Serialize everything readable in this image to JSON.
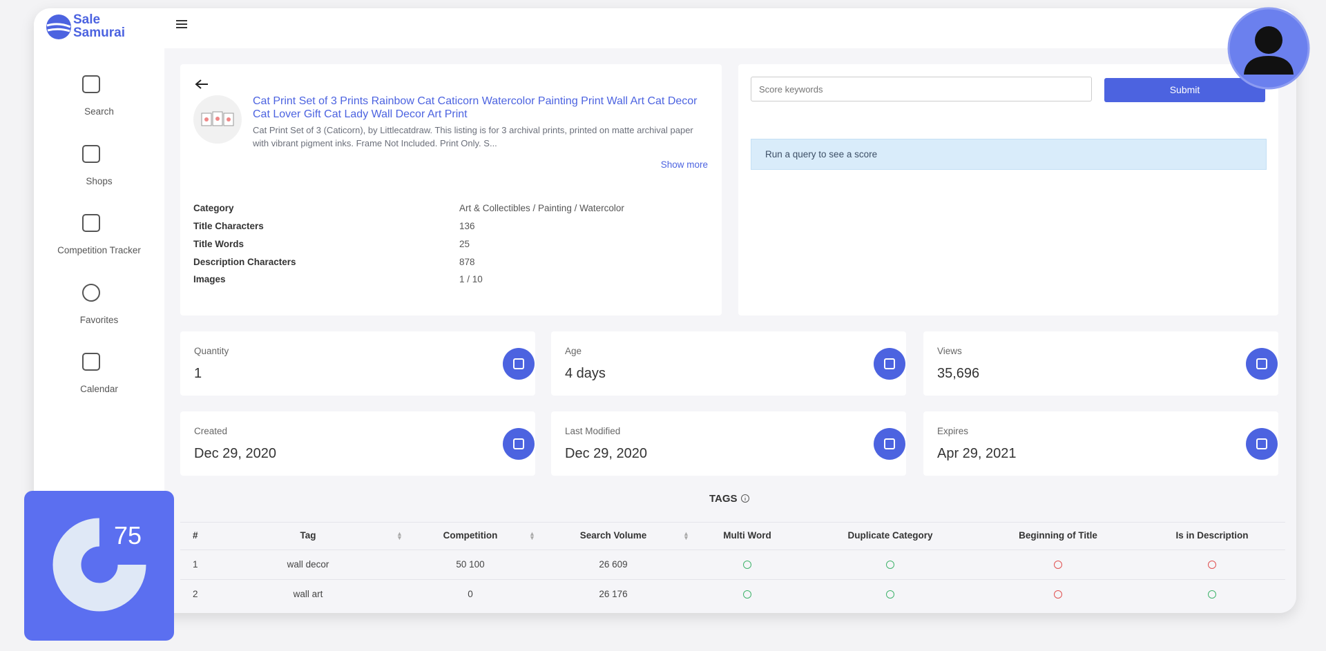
{
  "header": {
    "logo_line1": "Sale",
    "logo_line2": "Samurai"
  },
  "sidebar": [
    "Search",
    "Shops",
    "Competition Tracker",
    "Favorites",
    "Calendar"
  ],
  "listing": {
    "title": "Cat Print Set of 3 Prints Rainbow Cat Caticorn Watercolor Painting Print Wall Art Cat Decor Cat Lover Gift Cat Lady Wall Decor Art Print",
    "description": "Cat Print Set of 3 (Caticorn), by Littlecatdraw. This listing is for 3 archival prints, printed on matte archival paper with vibrant pigment inks. Frame Not Included. Print Only. S...",
    "show_more": "Show more",
    "details": [
      [
        "Category",
        "Art & Collectibles / Painting / Watercolor"
      ],
      [
        "Title Characters",
        "136"
      ],
      [
        "Title Words",
        "25"
      ],
      [
        "Description Characters",
        "878"
      ],
      [
        "Images",
        "1 / 10"
      ]
    ]
  },
  "score": {
    "placeholder": "Score keywords",
    "submit": "Submit",
    "message": "Run a query to see a score"
  },
  "stats": [
    [
      "Quantity",
      "1"
    ],
    [
      "Age",
      "4 days"
    ],
    [
      "Views",
      "35,696"
    ],
    [
      "Created",
      "Dec 29, 2020"
    ],
    [
      "Last Modified",
      "Dec 29, 2020"
    ],
    [
      "Expires",
      "Apr 29, 2021"
    ]
  ],
  "tags": {
    "title": "TAGS",
    "columns": [
      "#",
      "Tag",
      "Competition",
      "Search Volume",
      "Multi Word",
      "Duplicate Category",
      "Beginning of Title",
      "Is in Description"
    ],
    "rows": [
      [
        "1",
        "wall decor",
        "50 100",
        "26 609",
        true,
        true,
        false,
        false
      ],
      [
        "2",
        "wall art",
        "0",
        "26 176",
        true,
        true,
        false,
        true
      ]
    ]
  },
  "badge": {
    "score": "75"
  }
}
